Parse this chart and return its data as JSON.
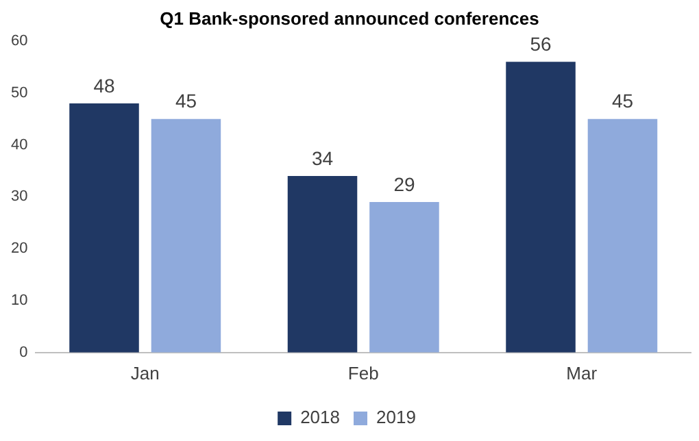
{
  "chart_data": {
    "type": "bar",
    "title": "Q1 Bank-sponsored announced conferences",
    "categories": [
      "Jan",
      "Feb",
      "Mar"
    ],
    "series": [
      {
        "name": "2018",
        "color": "#203864",
        "values": [
          48,
          34,
          56
        ]
      },
      {
        "name": "2019",
        "color": "#8faadc",
        "values": [
          45,
          29,
          45
        ]
      }
    ],
    "ylim": [
      0,
      60
    ],
    "yticks": [
      0,
      10,
      20,
      30,
      40,
      50,
      60
    ],
    "grid": false,
    "legend": "bottom",
    "data_labels": true
  }
}
